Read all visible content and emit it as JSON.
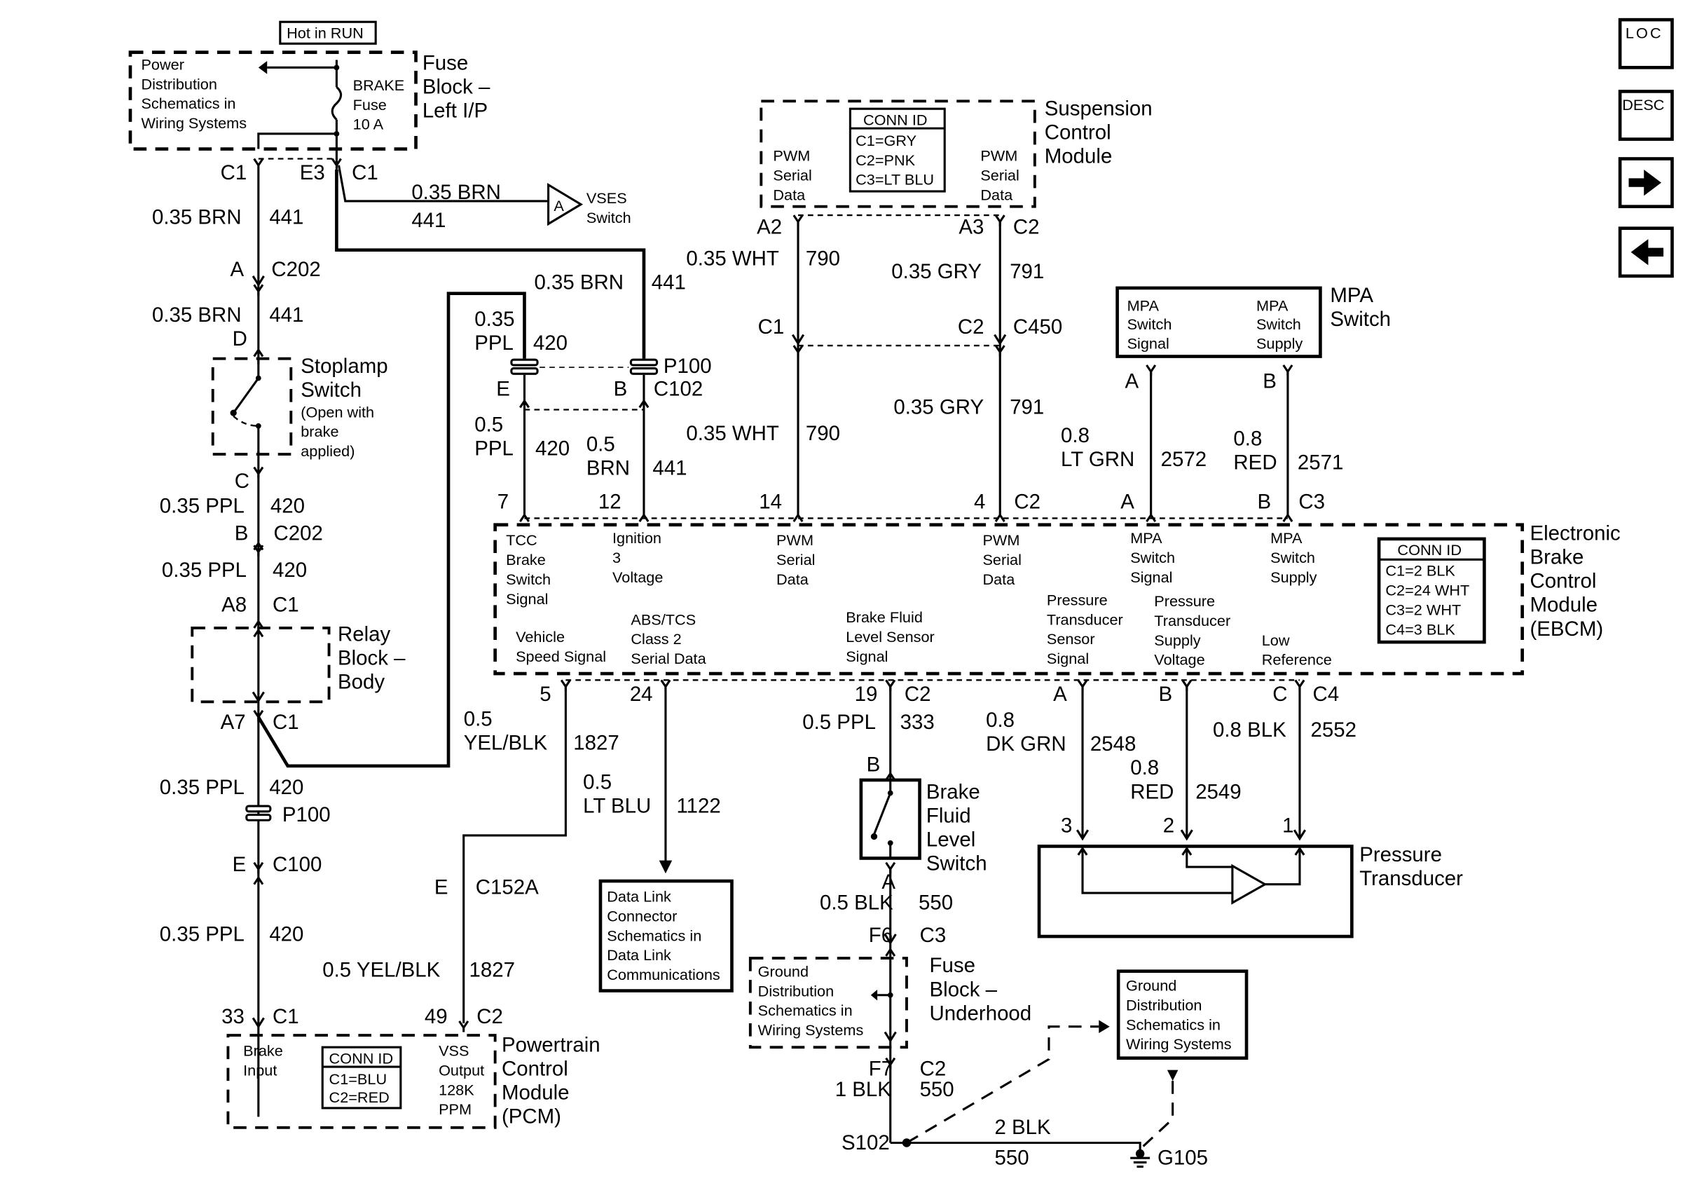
{
  "nav": {
    "loc_label": "LOC",
    "desc_label": "DESC",
    "next_icon": "arrow-right-icon",
    "prev_icon": "arrow-left-icon"
  },
  "fuse_left": {
    "hot": "Hot in RUN",
    "pd": [
      "Power",
      "Distribution",
      "Schematics in",
      "Wiring Systems"
    ],
    "fuse": [
      "BRAKE",
      "Fuse",
      "10 A"
    ],
    "title": [
      "Fuse",
      "Block –",
      "Left I/P"
    ],
    "c1a": "C1",
    "e3": "E3",
    "c1b": "C1"
  },
  "vses": {
    "pin": "A",
    "name": [
      "VSES",
      "Switch"
    ],
    "wire_color": "0.35 BRN",
    "circuit": "441"
  },
  "left_chain": {
    "w1c": "0.35 BRN",
    "w1n": "441",
    "a": "A",
    "c202": "C202",
    "w2c": "0.35 BRN",
    "w2n": "441",
    "d": "D",
    "stoplamp": [
      "Stoplamp",
      "Switch"
    ],
    "stoplamp_note": [
      "(Open with",
      "brake",
      "applied)"
    ],
    "c": "C",
    "w3c": "0.35 PPL",
    "w3n": "420",
    "b": "B",
    "c202b": "C202",
    "w4c": "0.35 PPL",
    "w4n": "420",
    "a8": "A8",
    "c1": "C1",
    "relay": [
      "Relay",
      "Block –",
      "Body"
    ],
    "a7": "A7",
    "c1b": "C1",
    "w5c": "0.35 PPL",
    "w5n": "420",
    "p100": "P100",
    "e": "E",
    "c100": "C100",
    "w6c": "0.35 PPL",
    "w6n": "420",
    "p33": "33",
    "c1c": "C1"
  },
  "pcm": {
    "brake_input": [
      "Brake",
      "Input"
    ],
    "conn_id": [
      "CONN ID",
      "C1=BLU",
      "C2=RED"
    ],
    "vss": [
      "VSS",
      "Output",
      "128K",
      "PPM"
    ],
    "title": [
      "Powertrain",
      "Control",
      "Module",
      "(PCM)"
    ],
    "p49": "49",
    "c2": "C2",
    "e": "E",
    "c152a": "C152A",
    "w1c": "0.5 YEL/BLK",
    "w1n": "1827"
  },
  "mid": {
    "brn_c": "0.35 BRN",
    "brn_n": "441",
    "ppl1": [
      "0.35",
      "PPL"
    ],
    "ppl1n": "420",
    "p100": "P100",
    "e": "E",
    "b": "B",
    "c102": "C102",
    "ppl2": [
      "0.5",
      "PPL"
    ],
    "ppl2n": "420",
    "brn2": [
      "0.5",
      "BRN"
    ],
    "brn2n": "441",
    "p7": "7",
    "p12": "12",
    "yb": [
      "0.5",
      "YEL/BLK"
    ],
    "ybn": "1827",
    "p5": "5",
    "p24": "24",
    "ltblu": [
      "0.5",
      "LT BLU"
    ],
    "ltblun": "1122"
  },
  "dlc": [
    "Data Link",
    "Connector",
    "Schematics in",
    "Data Link",
    "Communications"
  ],
  "scm": {
    "conn_id": [
      "CONN ID",
      "C1=GRY",
      "C2=PNK",
      "C3=LT BLU"
    ],
    "pwm_l": [
      "PWM",
      "Serial",
      "Data"
    ],
    "pwm_r": [
      "PWM",
      "Serial",
      "Data"
    ],
    "title": [
      "Suspension",
      "Control",
      "Module"
    ],
    "a2": "A2",
    "a3": "A3",
    "c2": "C2",
    "wht_c": "0.35 WHT",
    "wht_n": "790",
    "gry_c": "0.35 GRY",
    "gry_n": "791",
    "c1": "C1",
    "c2b": "C2",
    "c450": "C450",
    "wht2_c": "0.35 WHT",
    "wht2_n": "790",
    "gry2_c": "0.35 GRY",
    "gry2_n": "791",
    "p14": "14",
    "p4": "4",
    "c2c": "C2"
  },
  "mpa": {
    "sig": [
      "MPA",
      "Switch",
      "Signal"
    ],
    "sup": [
      "MPA",
      "Switch",
      "Supply"
    ],
    "title": [
      "MPA",
      "Switch"
    ],
    "a": "A",
    "b": "B",
    "grn": [
      "0.8",
      "LT GRN"
    ],
    "grnn": "2572",
    "red": [
      "0.8",
      "RED"
    ],
    "redn": "2571",
    "a2": "A",
    "b2": "B",
    "c3": "C3"
  },
  "ebcm": {
    "tcc": [
      "TCC",
      "Brake",
      "Switch",
      "Signal"
    ],
    "ign": [
      "Ignition",
      "3",
      "Voltage"
    ],
    "pwm1": [
      "PWM",
      "Serial",
      "Data"
    ],
    "pwm2": [
      "PWM",
      "Serial",
      "Data"
    ],
    "mpasig": [
      "MPA",
      "Switch",
      "Signal"
    ],
    "mpasup": [
      "MPA",
      "Switch",
      "Supply"
    ],
    "vss": [
      "Vehicle",
      "Speed Signal"
    ],
    "abs": [
      "ABS/TCS",
      "Class 2",
      "Serial Data"
    ],
    "bfl": [
      "Brake Fluid",
      "Level Sensor",
      "Signal"
    ],
    "pts": [
      "Pressure",
      "Transducer",
      "Sensor",
      "Signal"
    ],
    "ptv": [
      "Pressure",
      "Transducer",
      "Supply",
      "Voltage"
    ],
    "low": [
      "Low",
      "Reference"
    ],
    "conn_id": [
      "CONN ID",
      "C1=2 BLK",
      "C2=24 WHT",
      "C3=2 WHT",
      "C4=3 BLK"
    ],
    "title": [
      "Electronic",
      "Brake",
      "Control",
      "Module",
      "(EBCM)"
    ]
  },
  "bottom": {
    "p19": "19",
    "c2": "C2",
    "a": "A",
    "b": "B",
    "c": "C",
    "c4": "C4",
    "ppl_c": "0.5 PPL",
    "ppl_n": "333",
    "dkgrn": [
      "0.8",
      "DK GRN"
    ],
    "dkgrnn": "2548",
    "red": [
      "0.8",
      "RED"
    ],
    "redn": "2549",
    "blk_c": "0.8 BLK",
    "blk_n": "2552",
    "sw_b": "B",
    "switch": [
      "Brake",
      "Fluid",
      "Level",
      "Switch"
    ],
    "sw_a": "A",
    "blk2_c": "0.5 BLK",
    "blk2_n": "550",
    "f6": "F6",
    "c3": "C3",
    "gd": [
      "Ground",
      "Distribution",
      "Schematics in",
      "Wiring Systems"
    ],
    "fbu": [
      "Fuse",
      "Block –",
      "Underhood"
    ],
    "f7": "F7",
    "c2b": "C2",
    "blk3_c": "1 BLK",
    "blk3_n": "550",
    "s102": "S102",
    "blk4_c": "2 BLK",
    "blk4_n": "550",
    "g105": "G105",
    "gd2": [
      "Ground",
      "Distribution",
      "Schematics in",
      "Wiring Systems"
    ],
    "p3": "3",
    "p2": "2",
    "p1": "1",
    "pt": [
      "Pressure",
      "Transducer"
    ]
  }
}
